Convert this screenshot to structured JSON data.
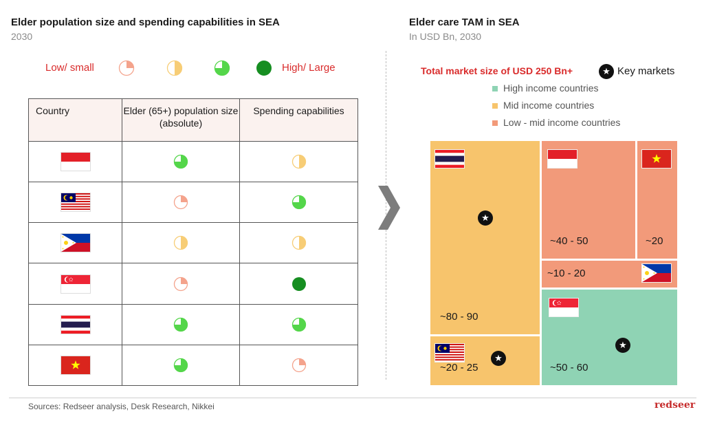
{
  "left": {
    "title": "Elder population size and spending capabilities in SEA",
    "subtitle": "2030",
    "legend": {
      "low_label": "Low/ small",
      "high_label": "High/ Large",
      "levels": [
        0.25,
        0.5,
        0.75,
        1.0
      ]
    },
    "table": {
      "headers": [
        "Country",
        "Elder (65+) population size (absolute)",
        "Spending capabilities"
      ]
    }
  },
  "right": {
    "title": "Elder care TAM in SEA",
    "subtitle": "In USD Bn, 2030",
    "total_label": "Total market size of USD 250 Bn+",
    "key_markets_label": "Key markets",
    "legend": [
      {
        "label": "High income countries",
        "color": "#8fd3b4"
      },
      {
        "label": "Mid income countries",
        "color": "#f7c46c"
      },
      {
        "label": "Low - mid income countries",
        "color": "#f29a7a"
      }
    ]
  },
  "colors": {
    "low_mid": "#f29a7a",
    "mid": "#f7c46c",
    "high": "#8fd3b4",
    "harvey_low": "#f4a38c",
    "harvey_mid": "#f7cd76",
    "harvey_high_mid": "#54d64a",
    "harvey_full": "#168e21"
  },
  "chart_data": [
    {
      "type": "table",
      "title": "Elder population size and spending capabilities in SEA",
      "subtitle": "2030",
      "columns": [
        "Country",
        "Elder (65+) population size (absolute)",
        "Spending capabilities"
      ],
      "rows": [
        {
          "flag": "indonesia-flag",
          "population": 0.75,
          "spending": 0.5
        },
        {
          "flag": "malaysia-flag",
          "population": 0.25,
          "spending": 0.75
        },
        {
          "flag": "philippines-flag",
          "population": 0.5,
          "spending": 0.5
        },
        {
          "flag": "singapore-flag",
          "population": 0.25,
          "spending": 1.0
        },
        {
          "flag": "thailand-flag",
          "population": 0.75,
          "spending": 0.75
        },
        {
          "flag": "vietnam-flag",
          "population": 0.75,
          "spending": 0.25
        }
      ]
    },
    {
      "type": "treemap",
      "title": "Elder care TAM in SEA",
      "subtitle": "In USD Bn, 2030",
      "total": "Total market size of USD 250 Bn+",
      "cells": [
        {
          "flag": "thailand-flag",
          "value_label": "~80 - 90",
          "range": [
            80,
            90
          ],
          "income_group": "mid",
          "key_market": true
        },
        {
          "flag": "malaysia-flag",
          "value_label": "~20 - 25",
          "range": [
            20,
            25
          ],
          "income_group": "mid",
          "key_market": true
        },
        {
          "flag": "indonesia-flag",
          "value_label": "~40 - 50",
          "range": [
            40,
            50
          ],
          "income_group": "low_mid",
          "key_market": false
        },
        {
          "flag": "vietnam-flag",
          "value_label": "~20",
          "range": [
            20,
            20
          ],
          "income_group": "low_mid",
          "key_market": false
        },
        {
          "flag": "philippines-flag",
          "value_label": "~10 - 20",
          "range": [
            10,
            20
          ],
          "income_group": "low_mid",
          "key_market": false
        },
        {
          "flag": "singapore-flag",
          "value_label": "~50 - 60",
          "range": [
            50,
            60
          ],
          "income_group": "high",
          "key_market": true
        }
      ]
    }
  ],
  "footer": {
    "sources": "Sources: Redseer analysis, Desk Research, Nikkei",
    "brand": "redseer"
  }
}
